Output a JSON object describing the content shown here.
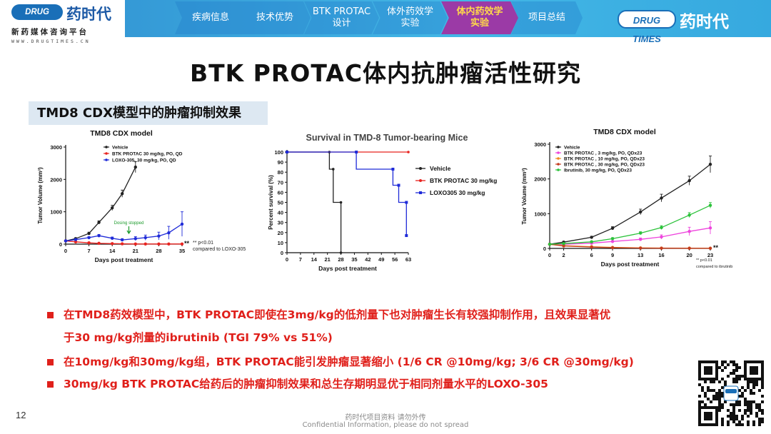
{
  "header": {
    "logo_badge": "DRUG TIMES",
    "logo_cn": "药时代",
    "logo_sub": "新药媒体咨询平台",
    "logo_url": "WWW.DRUGTIMES.CN",
    "tabs": [
      {
        "label": "疾病信息",
        "active": false
      },
      {
        "label": "技术优势",
        "active": false
      },
      {
        "label": "BTK PROTAC\n设计",
        "active": false
      },
      {
        "label": "体外药效学\n实验",
        "active": false
      },
      {
        "label": "体内药效学\n实验",
        "active": true
      },
      {
        "label": "项目总结",
        "active": false
      }
    ],
    "right_logo_badge": "DRUG TIMES",
    "right_logo_cn": "药时代"
  },
  "slide": {
    "title": "BTK PROTAC体内抗肿瘤活性研究",
    "section": "TMD8 CDX模型中的肿瘤抑制效果",
    "page_number": "12",
    "footer_cn": "药时代项目资料 请勿外传",
    "footer_en": "Confidential Information, please do not spread"
  },
  "bullets": [
    {
      "lines": [
        "在TMD8药效模型中，BTK PROTAC即使在3mg/kg的低剂量下也对肿瘤生长有较强抑制作用，且效果显著优",
        "于30 mg/kg剂量的ibrutinib (TGI 79% vs 51%)"
      ]
    },
    {
      "lines": [
        "在10mg/kg和30mg/kg组，BTK PROTAC能引发肿瘤显著缩小 (1/6 CR @10mg/kg; 3/6 CR @30mg/kg)"
      ]
    },
    {
      "lines": [
        "30mg/kg BTK PROTAC给药后的肿瘤抑制效果和总生存期明显优于相同剂量水平的LOXO-305"
      ]
    }
  ],
  "chart_data": [
    {
      "type": "line",
      "title": "TMD8 CDX model",
      "xlabel": "Days post treatment",
      "ylabel": "Tumor Volume (mm³)",
      "xlim": [
        0,
        35
      ],
      "ylim": [
        0,
        3000
      ],
      "xticks": [
        "0",
        "7",
        "14",
        "21",
        "28",
        "35"
      ],
      "yticks": [
        "0",
        "1000",
        "2000",
        "3000"
      ],
      "legend_position": "top-left",
      "annotation": "Dosing stopped",
      "annotation_x": 19,
      "significance": "**",
      "note": "** p<0.01\ncompared to LOXO-305",
      "series": [
        {
          "name": "Vehicle",
          "color": "#222222",
          "marker": "circle",
          "x": [
            0,
            3,
            7,
            10,
            14,
            17,
            21
          ],
          "y": [
            100,
            170,
            330,
            670,
            1120,
            1560,
            2380
          ],
          "err": [
            20,
            25,
            40,
            50,
            80,
            110,
            170
          ]
        },
        {
          "name": "BTK PROTAC   30 mg/kg, PO, QD",
          "color": "#e8231f",
          "marker": "circle",
          "x": [
            0,
            3,
            7,
            10,
            14,
            17,
            21,
            24,
            28,
            31,
            35
          ],
          "y": [
            100,
            70,
            40,
            25,
            15,
            10,
            5,
            5,
            5,
            5,
            5
          ],
          "err": [
            15,
            15,
            10,
            8,
            6,
            5,
            3,
            3,
            3,
            3,
            3
          ]
        },
        {
          "name": "LOXO-305, 30 mg/kg, PO, QD",
          "color": "#1f2bd8",
          "marker": "circle",
          "x": [
            0,
            3,
            7,
            10,
            14,
            17,
            21,
            24,
            28,
            31,
            35
          ],
          "y": [
            100,
            140,
            200,
            260,
            180,
            130,
            170,
            200,
            250,
            350,
            620
          ],
          "err": [
            20,
            25,
            30,
            40,
            40,
            40,
            60,
            80,
            120,
            200,
            380
          ]
        }
      ]
    },
    {
      "type": "line",
      "title": "Survival in TMD-8 Tumor-bearing Mice",
      "xlabel": "Days post treatment",
      "ylabel": "Percent survival (%)",
      "xlim": [
        0,
        63
      ],
      "ylim": [
        0,
        100
      ],
      "xticks": [
        "0",
        "7",
        "14",
        "21",
        "28",
        "35",
        "42",
        "49",
        "56",
        "63"
      ],
      "yticks": [
        "0",
        "10",
        "20",
        "30",
        "40",
        "50",
        "60",
        "70",
        "80",
        "90",
        "100"
      ],
      "legend_position": "right",
      "series": [
        {
          "name": "Vehicle",
          "color": "#222222",
          "marker": "circle",
          "x": [
            0,
            22,
            22,
            24,
            24,
            28,
            28
          ],
          "y": [
            100,
            100,
            83,
            83,
            50,
            50,
            0
          ]
        },
        {
          "name": "BTK PROTAC     30 mg/kg",
          "color": "#e8231f",
          "marker": "circle",
          "x": [
            0,
            63
          ],
          "y": [
            100,
            100
          ]
        },
        {
          "name": "LOXO305 30 mg/kg",
          "color": "#1f2bd8",
          "marker": "square",
          "x": [
            0,
            36,
            36,
            55,
            55,
            58,
            58,
            62,
            62
          ],
          "y": [
            100,
            100,
            83,
            83,
            67,
            67,
            50,
            50,
            17
          ]
        }
      ]
    },
    {
      "type": "line",
      "title": "TMD8 CDX model",
      "xlabel": "Days post treatment",
      "ylabel": "Tumor Volume (mm³)",
      "xlim": [
        0,
        23
      ],
      "ylim": [
        0,
        3000
      ],
      "xticks": [
        "0",
        "2",
        "6",
        "9",
        "13",
        "16",
        "20",
        "23"
      ],
      "yticks": [
        "0",
        "1000",
        "2000",
        "3000"
      ],
      "legend_position": "top-left",
      "significance": "**",
      "note": "** p<0.01\ncompared to ibrutinib",
      "series": [
        {
          "name": "Vehicle",
          "color": "#222222",
          "marker": "circle",
          "x": [
            0,
            2,
            6,
            9,
            13,
            16,
            20,
            23
          ],
          "y": [
            120,
            180,
            320,
            580,
            1050,
            1450,
            1950,
            2420
          ],
          "err": [
            15,
            20,
            30,
            45,
            80,
            110,
            130,
            240
          ]
        },
        {
          "name": "BTK PROTAC , 3 mg/kg, PO, QDx23",
          "color": "#ee44dd",
          "marker": "circle",
          "x": [
            0,
            2,
            6,
            9,
            13,
            16,
            20,
            23
          ],
          "y": [
            120,
            120,
            150,
            200,
            260,
            330,
            490,
            590
          ],
          "err": [
            15,
            15,
            20,
            25,
            40,
            60,
            120,
            180
          ]
        },
        {
          "name": "BTK PROTAC , 10 mg/kg, PO, QDx23",
          "color": "#f08c1e",
          "marker": "circle",
          "x": [
            0,
            2,
            6,
            9,
            13,
            16,
            20,
            23
          ],
          "y": [
            120,
            80,
            50,
            30,
            15,
            10,
            8,
            5
          ],
          "err": [
            15,
            12,
            10,
            8,
            5,
            5,
            4,
            3
          ]
        },
        {
          "name": "BTK PROTAC , 30 mg/kg, PO, QDx23",
          "color": "#c43c1e",
          "marker": "circle",
          "x": [
            0,
            2,
            6,
            9,
            13,
            16,
            20,
            23
          ],
          "y": [
            120,
            70,
            40,
            20,
            10,
            6,
            4,
            3
          ],
          "err": [
            15,
            12,
            8,
            6,
            4,
            3,
            3,
            2
          ]
        },
        {
          "name": "Ibrutinib, 30 mg/kg, PO, QDx23",
          "color": "#2bc23a",
          "marker": "circle",
          "x": [
            0,
            2,
            6,
            9,
            13,
            16,
            20,
            23
          ],
          "y": [
            120,
            140,
            190,
            280,
            440,
            600,
            960,
            1240
          ],
          "err": [
            15,
            18,
            22,
            30,
            40,
            55,
            70,
            80
          ]
        }
      ]
    }
  ],
  "colors": {
    "accent_red": "#e0201b",
    "header_blue": "#2f8ed0",
    "active_tab": "#9b3aa6"
  }
}
